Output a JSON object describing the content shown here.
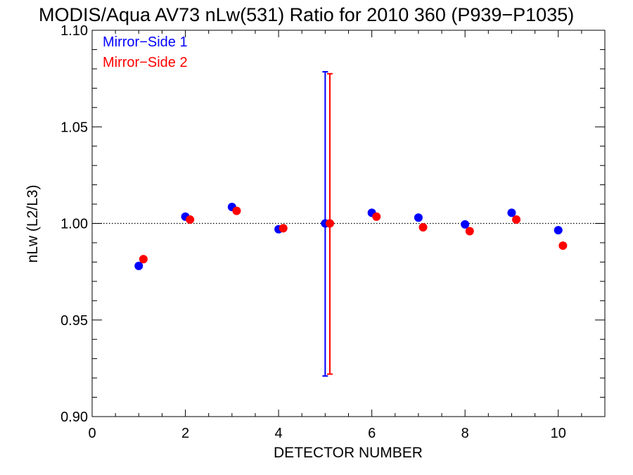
{
  "chart_data": {
    "type": "scatter",
    "title": "MODIS/Aqua AV73 nLw(531) Ratio for 2010 360 (P939−P1035)",
    "xlabel": "DETECTOR NUMBER",
    "ylabel": "nLw (L2/L3)",
    "xlim": [
      0,
      11
    ],
    "ylim": [
      0.9,
      1.1
    ],
    "x_ticks": [
      0,
      2,
      4,
      6,
      8,
      10
    ],
    "x_tick_labels": [
      "0",
      "2",
      "4",
      "6",
      "8",
      "10"
    ],
    "y_ticks": [
      0.9,
      0.95,
      1.0,
      1.05,
      1.1
    ],
    "y_tick_labels": [
      "0.90",
      "0.95",
      "1.00",
      "1.05",
      "1.10"
    ],
    "reference_line": 1.0,
    "legend_position": "top-left",
    "series": [
      {
        "name": "Mirror−Side 1",
        "color": "#0000ff",
        "x": [
          1,
          2,
          3,
          4,
          5,
          6,
          7,
          8,
          9,
          10
        ],
        "values": [
          0.978,
          1.0035,
          1.0085,
          0.997,
          1.0,
          1.0055,
          1.003,
          0.9995,
          1.0055,
          0.9965
        ],
        "error_bar": {
          "x": 5,
          "low": 0.921,
          "high": 1.0785
        }
      },
      {
        "name": "Mirror−Side 2",
        "color": "#ff0000",
        "x": [
          1.1,
          2.1,
          3.1,
          4.1,
          5.1,
          6.1,
          7.1,
          8.1,
          9.1,
          10.1
        ],
        "values": [
          0.9815,
          1.002,
          1.0065,
          0.9975,
          1.0,
          1.0035,
          0.998,
          0.996,
          1.002,
          0.9885
        ],
        "error_bar": {
          "x": 5.1,
          "low": 0.922,
          "high": 1.0775
        }
      }
    ]
  }
}
